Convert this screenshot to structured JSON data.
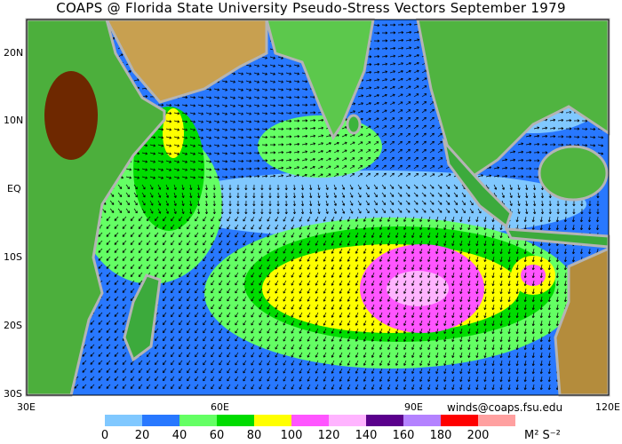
{
  "title": "COAPS @ Florida State University Pseudo-Stress Vectors  September 1979",
  "lat_labels": [
    "20N",
    "10N",
    "EQ",
    "10S",
    "20S",
    "30S"
  ],
  "lon_labels": [
    "30E",
    "60E",
    "90E",
    "120E"
  ],
  "credit": "winds@coaps.fsu.edu",
  "colorbar": {
    "colors": [
      "#80c8ff",
      "#2878ff",
      "#64ff64",
      "#00dc00",
      "#ffff00",
      "#ff55ff",
      "#ffb4ff",
      "#5a008c",
      "#b482ff",
      "#ff0000",
      "#ffa0a0"
    ],
    "tick_labels": [
      "0",
      "20",
      "40",
      "60",
      "80",
      "100",
      "120",
      "140",
      "160",
      "180",
      "200"
    ],
    "units": "M² S⁻²"
  }
}
